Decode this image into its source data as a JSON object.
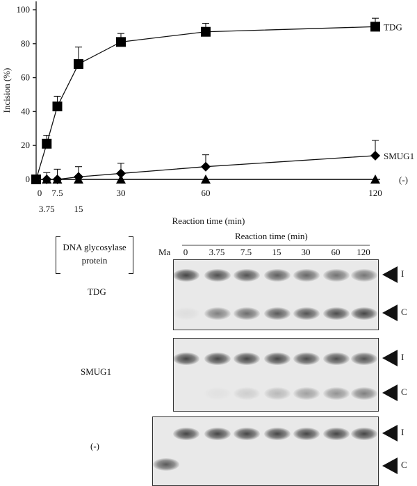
{
  "chart_data": {
    "type": "line",
    "ylabel": "Incision (%)",
    "xlabel": "Reaction time (min)",
    "ylim": [
      0,
      100
    ],
    "y_ticks": [
      "0",
      "20",
      "40",
      "60",
      "80",
      "100"
    ],
    "x_ticks": [
      {
        "value": 0,
        "label": "0",
        "row": 1
      },
      {
        "value": 3.75,
        "label": "3.75",
        "row": 2
      },
      {
        "value": 7.5,
        "label": "7.5",
        "row": 1
      },
      {
        "value": 15,
        "label": "15",
        "row": 2
      },
      {
        "value": 30,
        "label": "30",
        "row": 1
      },
      {
        "value": 60,
        "label": "60",
        "row": 1
      },
      {
        "value": 120,
        "label": "120",
        "row": 1
      }
    ],
    "x": [
      0,
      3.75,
      7.5,
      15,
      30,
      60,
      120
    ],
    "series": [
      {
        "name": "TDG",
        "marker": "square",
        "values": [
          0,
          21,
          43,
          68,
          81,
          87,
          90
        ],
        "errors": [
          0,
          5,
          6,
          10,
          5,
          5,
          5
        ]
      },
      {
        "name": "SMUG1",
        "marker": "diamond",
        "values": [
          0,
          0,
          0,
          1.5,
          3.5,
          7.5,
          14
        ],
        "errors": [
          0,
          4,
          6,
          6,
          6,
          7,
          9
        ]
      },
      {
        "name": "(-)",
        "marker": "triangle",
        "values": [
          0,
          0,
          0,
          0,
          0,
          0,
          0
        ],
        "errors": [
          0,
          0,
          0,
          0,
          0,
          0,
          0
        ]
      }
    ]
  },
  "gel": {
    "header_title": "Reaction time (min)",
    "protein_header": "DNA glycosylase\nprotein",
    "marker_label": "Ma",
    "lanes": [
      "0",
      "3.75",
      "7.5",
      "15",
      "30",
      "60",
      "120"
    ],
    "band_labels": [
      "I",
      "C"
    ],
    "rows": [
      {
        "label": "TDG",
        "intact": [
          0.85,
          0.8,
          0.78,
          0.72,
          0.68,
          0.62,
          0.6
        ],
        "cleaved": [
          0.06,
          0.55,
          0.65,
          0.75,
          0.78,
          0.82,
          0.85
        ]
      },
      {
        "label": "SMUG1",
        "intact": [
          0.85,
          0.85,
          0.85,
          0.85,
          0.82,
          0.8,
          0.78
        ],
        "cleaved": [
          0.0,
          0.04,
          0.14,
          0.25,
          0.38,
          0.45,
          0.55
        ]
      },
      {
        "label": "(-)",
        "marker_band": 0.75,
        "intact": [
          0.85,
          0.85,
          0.85,
          0.85,
          0.85,
          0.85,
          0.85
        ],
        "cleaved": [
          0,
          0,
          0,
          0,
          0,
          0,
          0
        ]
      }
    ]
  }
}
